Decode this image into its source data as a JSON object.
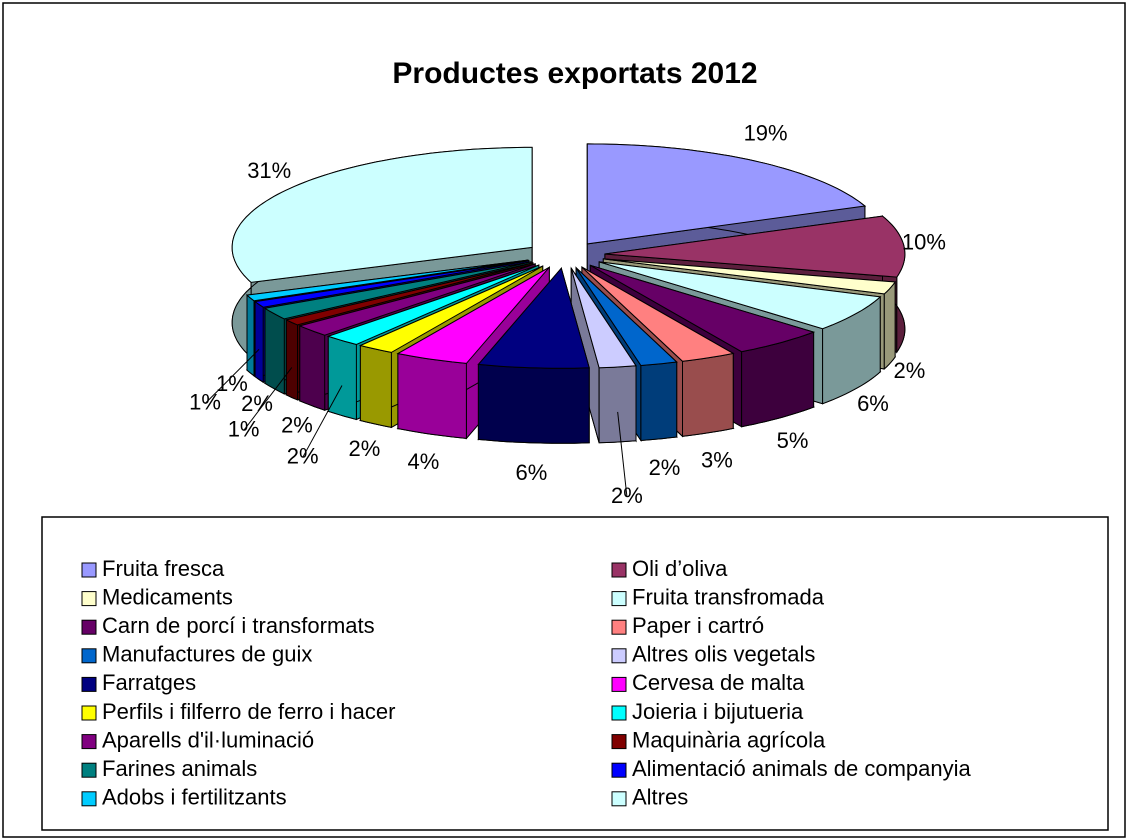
{
  "chart_data": {
    "type": "pie",
    "title": "Productes exportats 2012",
    "categories": [
      "Fruita fresca",
      "Oli d’oliva",
      "Medicaments",
      "Fruita transfromada",
      "Carn de porcí i transformats",
      "Paper i cartró",
      "Manufactures de guix",
      "Altres olis vegetals",
      "Farratges",
      "Cervesa de malta",
      "Perfils i filferro de ferro i hacer",
      "Joieria i bijutueria",
      "Aparells d'il·luminació",
      "Maquinària agrícola",
      "Farines animals",
      "Alimentació animals de companyia",
      "Adobs i fertilitzants",
      "Altres"
    ],
    "values": [
      19,
      10,
      2,
      6,
      5,
      3,
      2,
      2,
      6,
      4,
      2,
      2,
      2,
      1,
      2,
      1,
      1,
      31
    ],
    "value_labels": [
      "19%",
      "10%",
      "2%",
      "6%",
      "5%",
      "3%",
      "2%",
      "2%",
      "6%",
      "4%",
      "2%",
      "2%",
      "2%",
      "1%",
      "2%",
      "1%",
      "1%",
      "31%"
    ],
    "colors": [
      "#9999FF",
      "#993366",
      "#FFFFCC",
      "#CCFFFF",
      "#660066",
      "#FF8080",
      "#0066CC",
      "#CCCCFF",
      "#000080",
      "#FF00FF",
      "#FFFF00",
      "#00FFFF",
      "#800080",
      "#800000",
      "#008080",
      "#0000FF",
      "#00CCFF",
      "#CCFFFF"
    ],
    "legend": "bottom"
  }
}
